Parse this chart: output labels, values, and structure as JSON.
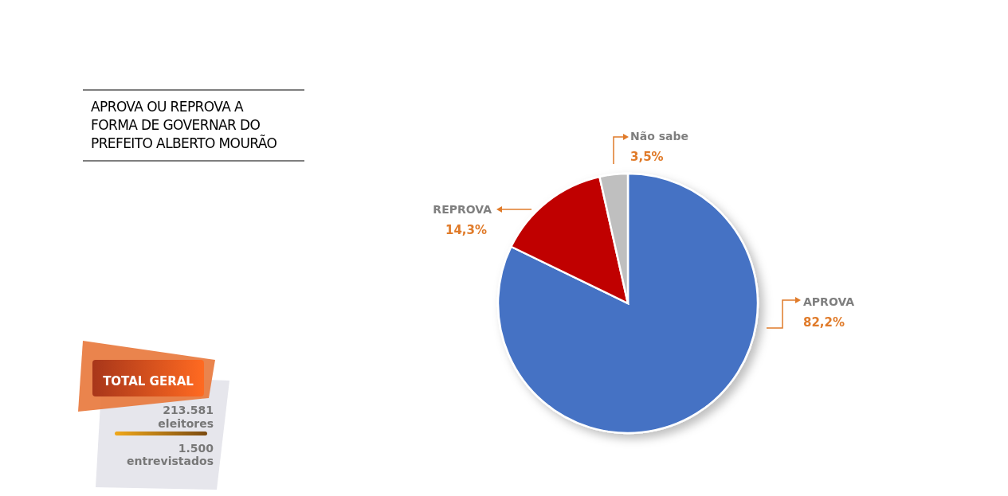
{
  "chart_data": {
    "type": "pie",
    "title": "APROVA OU REPROVA A\nFORMA DE GOVERNAR DO\nPREFEITO ALBERTO MOURÃO",
    "categories": [
      "APROVA",
      "REPROVA",
      "Não sabe"
    ],
    "values": [
      82.2,
      14.3,
      3.5
    ],
    "value_labels": [
      "82,2%",
      "14,3%",
      "3,5%"
    ],
    "colors": [
      "#4472c4",
      "#c00000",
      "#bfbfbf"
    ],
    "annotations": [
      "TOTAL GERAL",
      "213.581",
      "eleitores",
      "1.500",
      "entrevistados"
    ]
  }
}
